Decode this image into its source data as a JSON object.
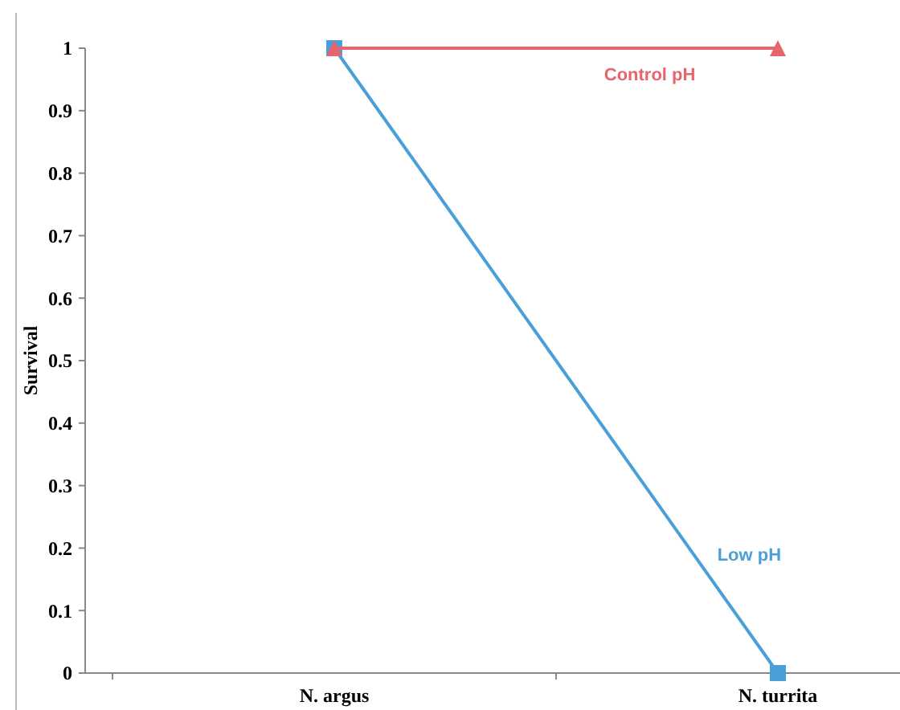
{
  "chart_data": {
    "type": "line",
    "ylabel": "Survival",
    "categories": [
      "N. argus",
      "N. turrita"
    ],
    "series": [
      {
        "name": "Control pH",
        "color": "#e8636b",
        "values": [
          1,
          1
        ],
        "marker": "triangle"
      },
      {
        "name": "Low pH",
        "color": "#4a9fd8",
        "values": [
          1,
          0
        ],
        "marker": "square"
      }
    ],
    "ylim": [
      0,
      1
    ],
    "yticks": [
      0,
      0.1,
      0.2,
      0.3,
      0.4,
      0.5,
      0.6,
      0.7,
      0.8,
      0.9,
      1
    ],
    "grid": false,
    "line_style": "solid"
  }
}
